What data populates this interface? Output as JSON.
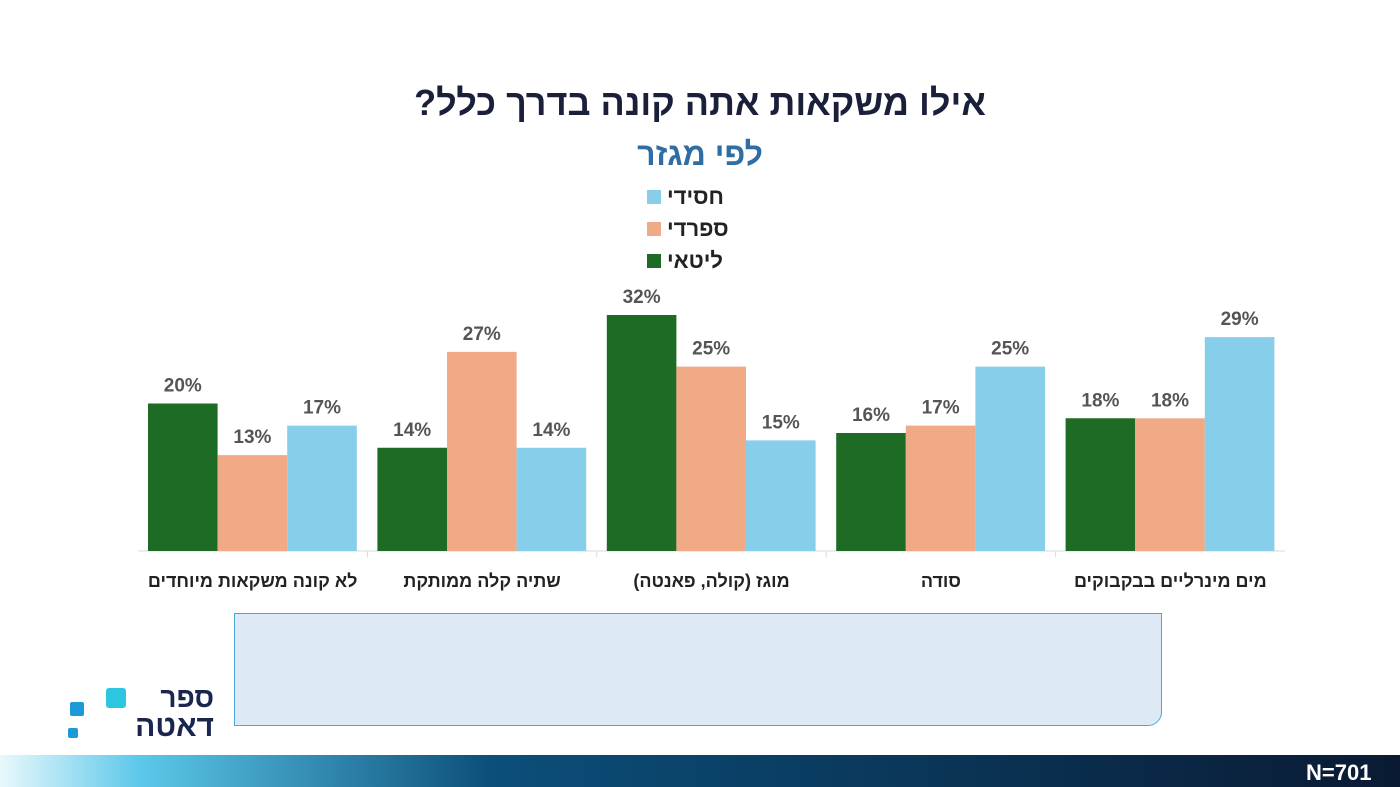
{
  "chart_data": {
    "type": "bar",
    "title": "אילו משקאות אתה קונה בדרך כלל?",
    "subtitle": "לפי מגזר",
    "categories": [
      "לא קונה משקאות מיוחדים",
      "שתיה קלה ממותקת",
      "מוגז (קולה, פאנטה)",
      "סודה",
      "מים מינרליים בבקבוקים"
    ],
    "series": [
      {
        "name": "ליטאי",
        "color": "#1e6b25",
        "values": [
          20,
          14,
          32,
          16,
          18
        ],
        "value_labels": [
          "20%",
          "14%",
          "32%",
          "16%",
          "18%"
        ]
      },
      {
        "name": "ספרדי",
        "color": "#f0aa85",
        "values": [
          13,
          27,
          25,
          17,
          18
        ],
        "value_labels": [
          "13%",
          "27%",
          "25%",
          "17%",
          "18%"
        ]
      },
      {
        "name": "חסידי",
        "color": "#87ceeb",
        "values": [
          17,
          14,
          15,
          25,
          29
        ],
        "value_labels": [
          "17%",
          "14%",
          "15%",
          "25%",
          "29%"
        ]
      }
    ]
  },
  "logo": {
    "line1": "ספר",
    "line2": "דאטה"
  },
  "footer": {
    "sample": "N=701"
  }
}
